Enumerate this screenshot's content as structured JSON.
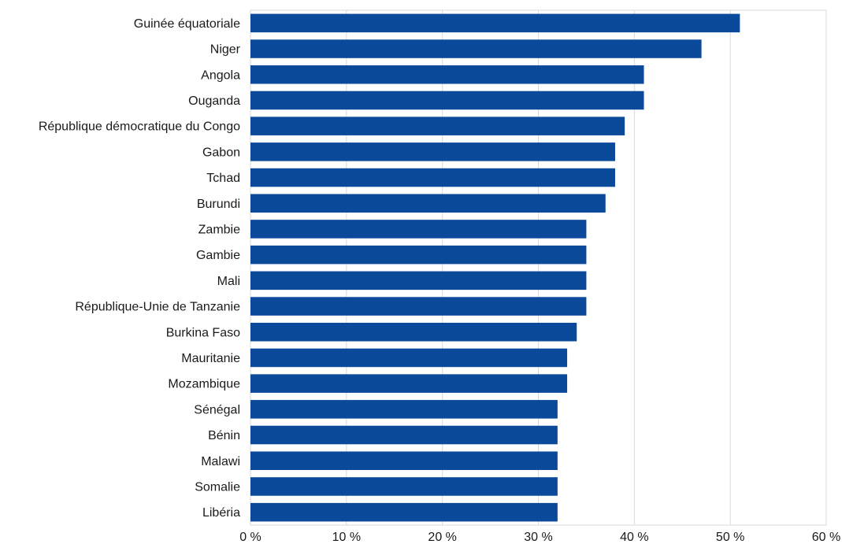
{
  "chart_data": {
    "type": "bar",
    "orientation": "horizontal",
    "title": "",
    "xlabel": "",
    "ylabel": "",
    "categories": [
      "Guinée équatoriale",
      "Niger",
      "Angola",
      "Ouganda",
      "République démocratique du Congo",
      "Gabon",
      "Tchad",
      "Burundi",
      "Zambie",
      "Gambie",
      "Mali",
      "République-Unie de Tanzanie",
      "Burkina Faso",
      "Mauritanie",
      "Mozambique",
      "Sénégal",
      "Bénin",
      "Malawi",
      "Somalie",
      "Libéria"
    ],
    "values": [
      51,
      47,
      41,
      41,
      39,
      38,
      38,
      37,
      35,
      35,
      35,
      35,
      34,
      33,
      33,
      32,
      32,
      32,
      32,
      32
    ],
    "xlim": [
      0,
      60
    ],
    "x_ticks": [
      0,
      10,
      20,
      30,
      40,
      50,
      60
    ],
    "x_tick_labels": [
      "0 %",
      "10 %",
      "20 %",
      "30 %",
      "40 %",
      "50 %",
      "60 %"
    ],
    "grid": true,
    "legend": "none",
    "bar_color": "#0b4a9a",
    "grid_color": "#d9d9d9"
  }
}
